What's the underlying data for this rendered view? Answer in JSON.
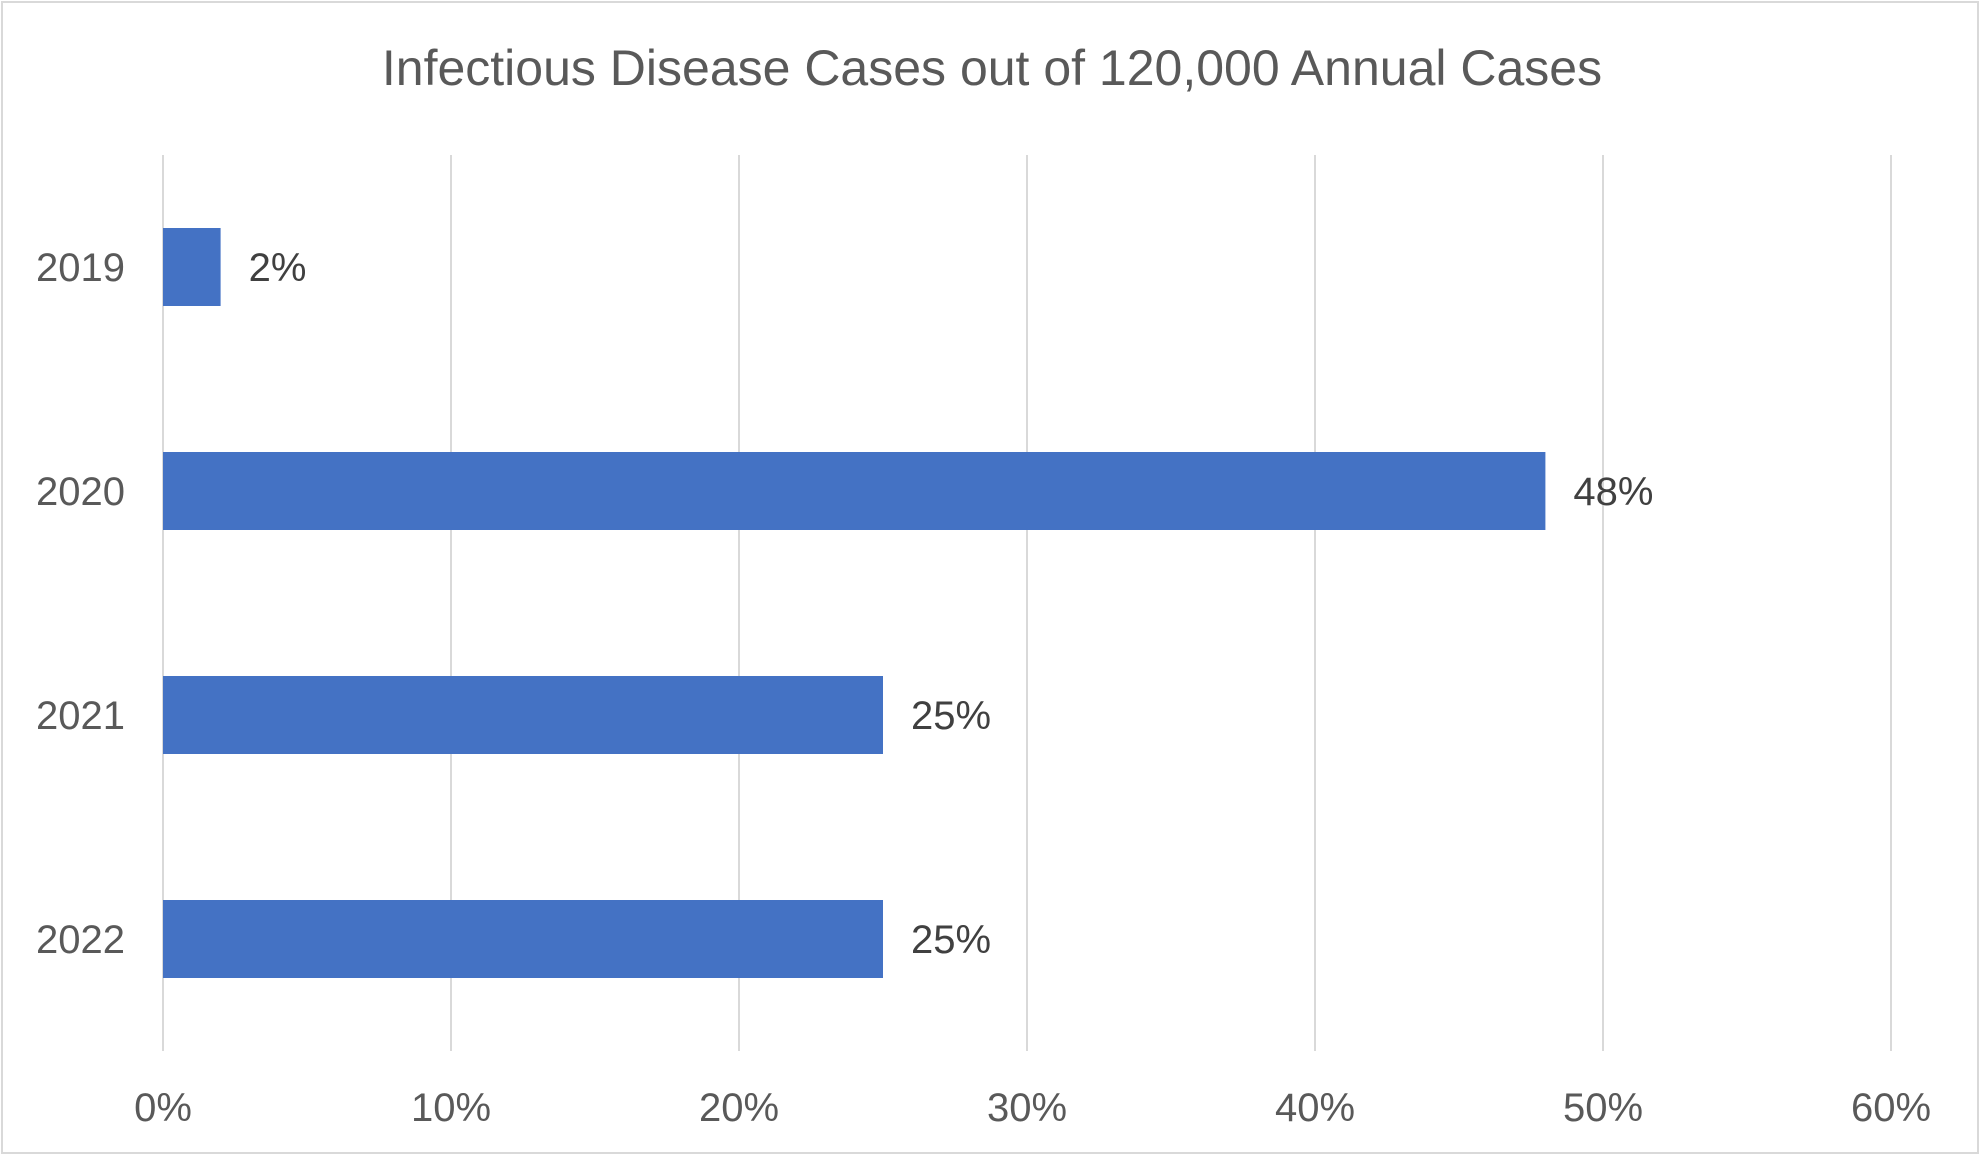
{
  "chart_data": {
    "type": "bar",
    "orientation": "horizontal",
    "title": "Infectious Disease Cases out of 120,000 Annual Cases",
    "categories": [
      "2019",
      "2020",
      "2021",
      "2022"
    ],
    "values": [
      2,
      48,
      25,
      25
    ],
    "data_labels": [
      "2%",
      "48%",
      "25%",
      "25%"
    ],
    "x_ticks": [
      "0%",
      "10%",
      "20%",
      "30%",
      "40%",
      "50%",
      "60%"
    ],
    "xlim": [
      0,
      60
    ],
    "xlabel": "",
    "ylabel": "",
    "grid": "vertical",
    "legend": "none",
    "bar_color": "#4472C4"
  }
}
